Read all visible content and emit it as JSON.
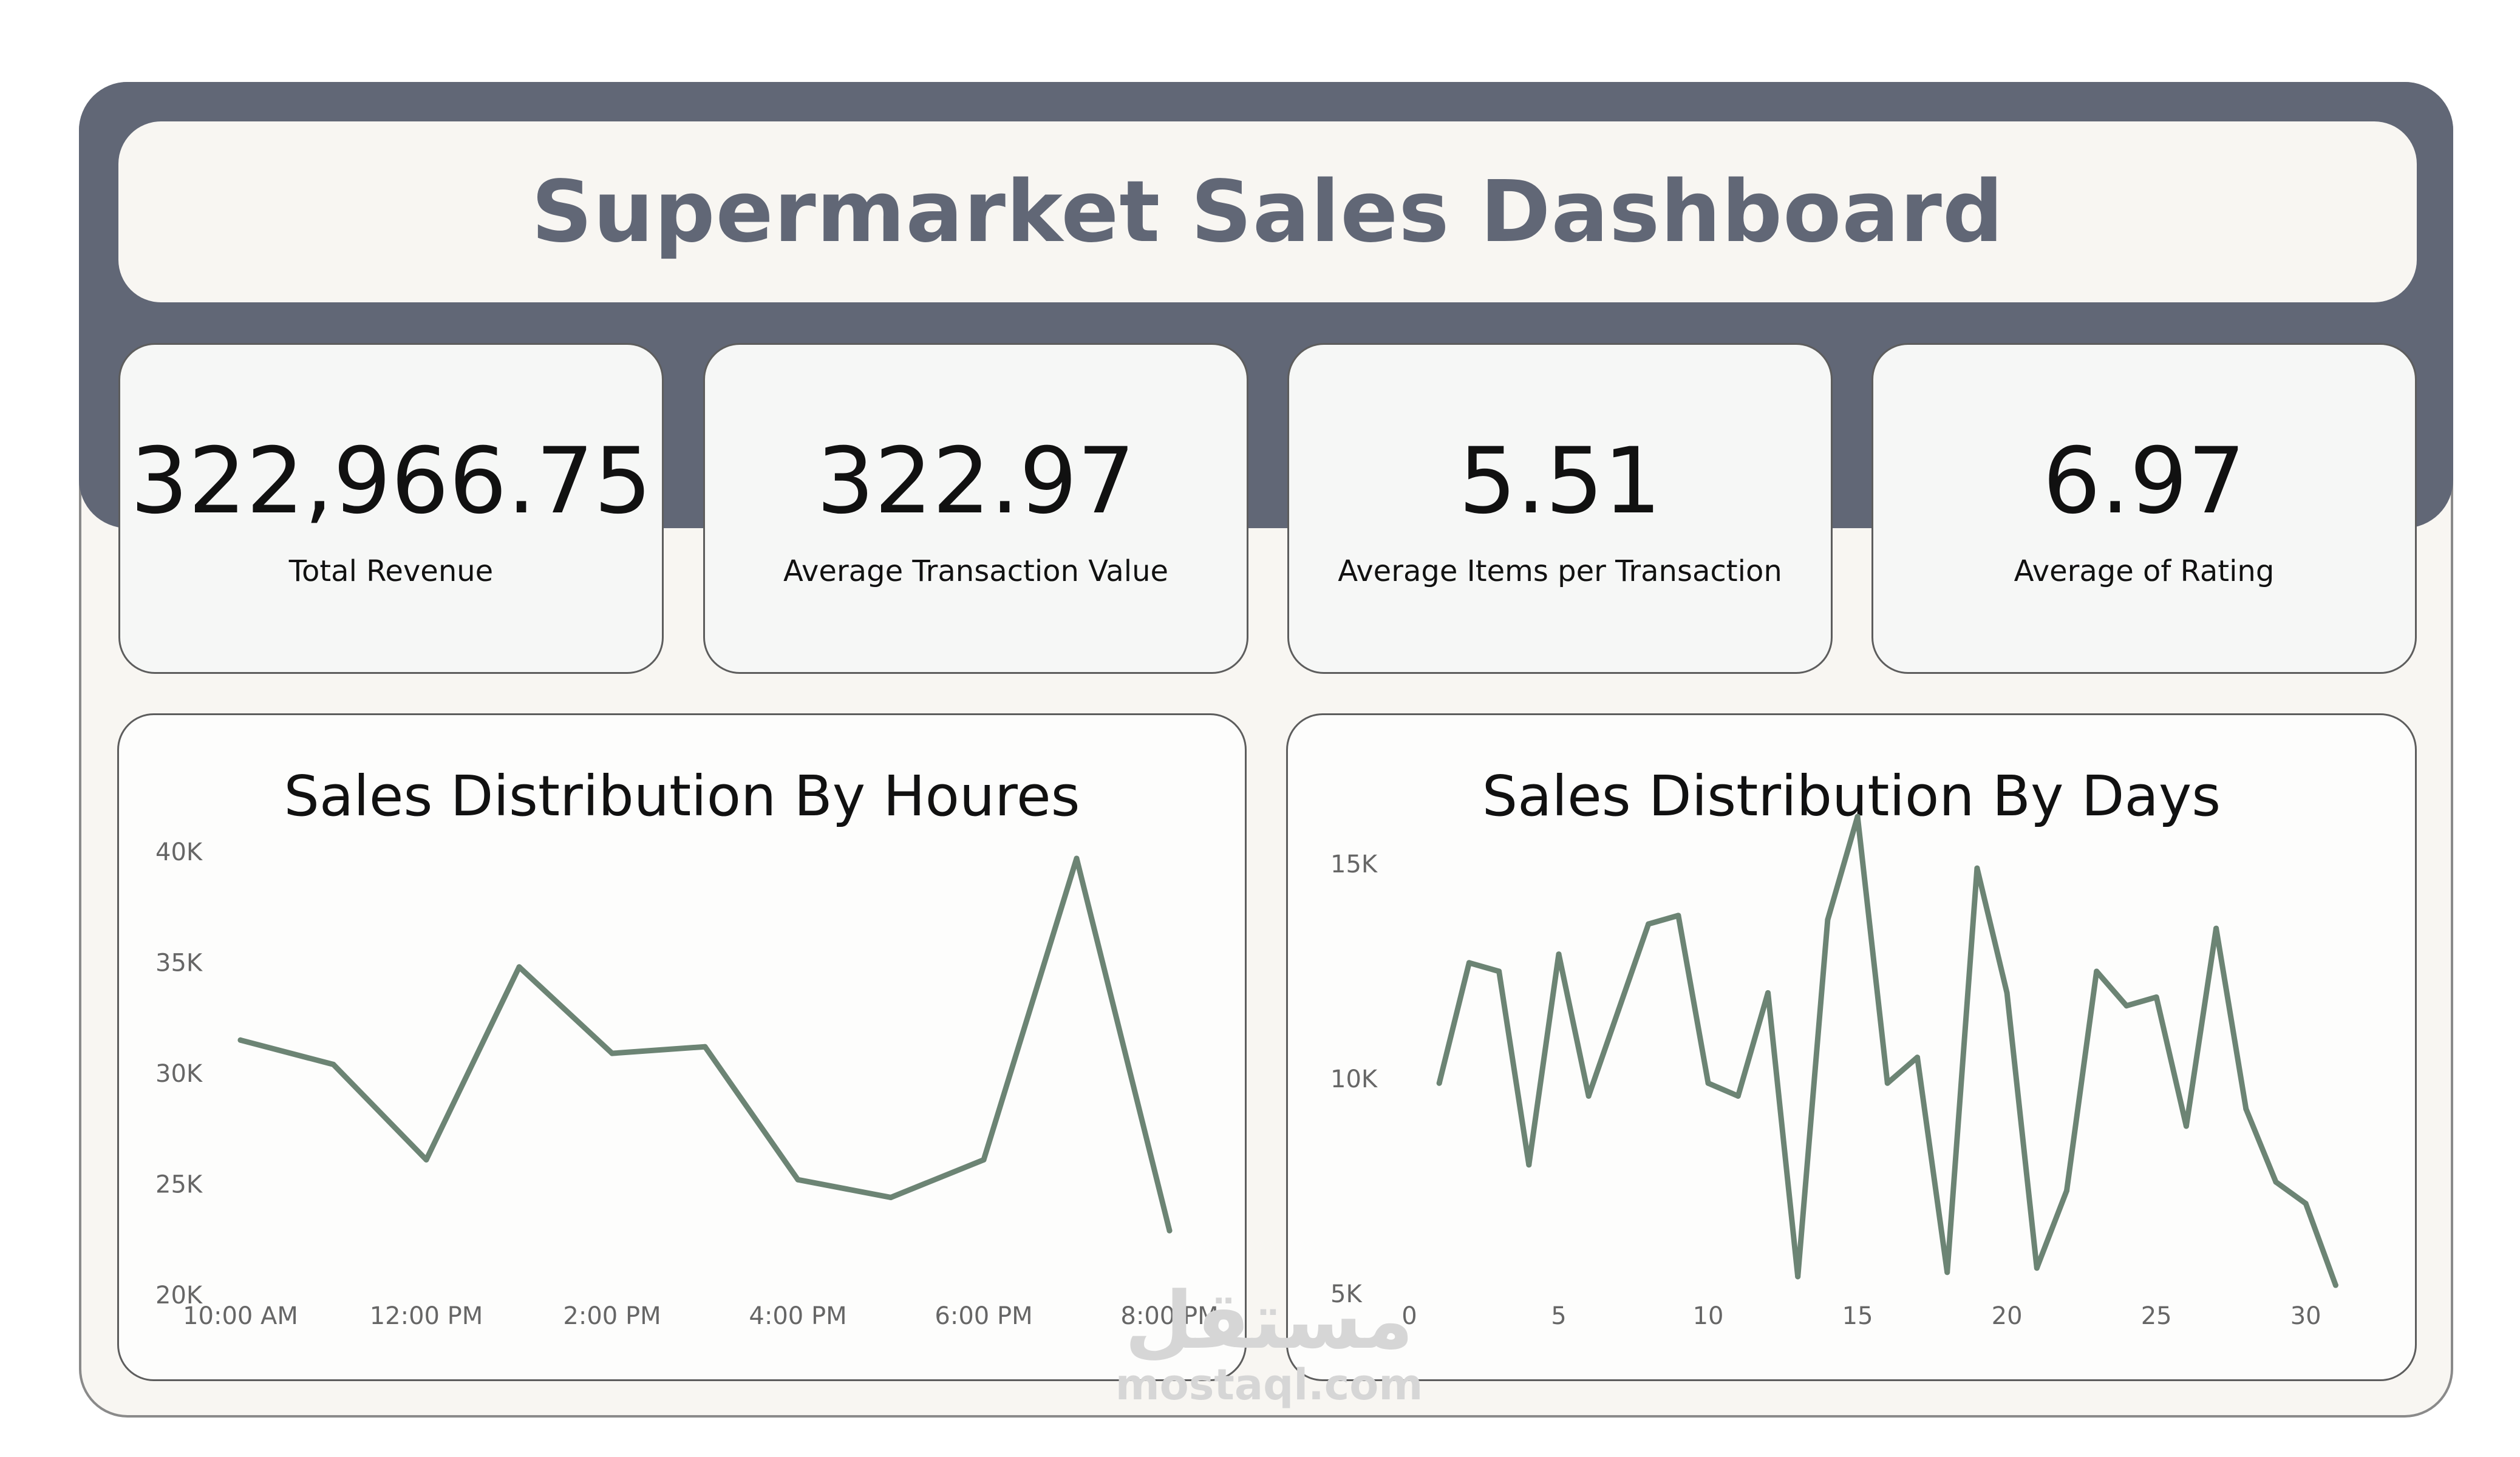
{
  "header": {
    "title": "Supermarket Sales Dashboard"
  },
  "kpis": [
    {
      "value": "322,966.75",
      "label": "Total Revenue"
    },
    {
      "value": "322.97",
      "label": "Average Transaction Value"
    },
    {
      "value": "5.51",
      "label": "Average Items per Transaction"
    },
    {
      "value": "6.97",
      "label": "Average of Rating"
    }
  ],
  "colors": {
    "band": "#616776",
    "line": "#6c8474",
    "panel_bg": "#f8f6f2"
  },
  "watermark": {
    "arabic": "مستقل",
    "latin": "mostaql.com"
  },
  "chart_data": [
    {
      "type": "line",
      "title": "Sales Distribution By Houres",
      "x": [
        10,
        11,
        12,
        13,
        14,
        15,
        16,
        17,
        18,
        19,
        20
      ],
      "x_tick_values": [
        10,
        12,
        14,
        16,
        18,
        20
      ],
      "x_tick_labels": [
        "10:00 AM",
        "12:00 PM",
        "2:00 PM",
        "4:00 PM",
        "6:00 PM",
        "8:00 PM"
      ],
      "values": [
        31500,
        30400,
        26100,
        34800,
        30900,
        31200,
        25200,
        24400,
        26100,
        39700,
        22900
      ],
      "y_tick_values": [
        20000,
        25000,
        30000,
        35000,
        40000
      ],
      "y_tick_labels": [
        "20K",
        "25K",
        "30K",
        "35K",
        "40K"
      ],
      "xlim": [
        10,
        20
      ],
      "ylim": [
        20000,
        40000
      ],
      "xlabel": "",
      "ylabel": "",
      "grid": false
    },
    {
      "type": "line",
      "title": "Sales Distribution By Days",
      "x": [
        1,
        2,
        3,
        4,
        5,
        6,
        7,
        8,
        9,
        10,
        11,
        12,
        13,
        14,
        15,
        16,
        17,
        18,
        19,
        20,
        21,
        22,
        23,
        24,
        25,
        26,
        27,
        28,
        29,
        30,
        31
      ],
      "x_tick_values": [
        0,
        5,
        10,
        15,
        20,
        25,
        30
      ],
      "x_tick_labels": [
        "0",
        "5",
        "10",
        "15",
        "20",
        "25",
        "30"
      ],
      "values": [
        9900,
        12700,
        12500,
        8000,
        12900,
        9600,
        11600,
        13600,
        13800,
        9900,
        9600,
        12000,
        5400,
        13700,
        16100,
        9900,
        10500,
        5500,
        14900,
        12000,
        5600,
        7400,
        12500,
        11700,
        11900,
        8900,
        13500,
        9300,
        7600,
        7100,
        5200
      ],
      "y_tick_values": [
        5000,
        10000,
        15000
      ],
      "y_tick_labels": [
        "5K",
        "10K",
        "15K"
      ],
      "xlim": [
        0,
        31.5
      ],
      "ylim": [
        4000,
        16200
      ],
      "xlabel": "",
      "ylabel": "",
      "grid": false
    }
  ]
}
